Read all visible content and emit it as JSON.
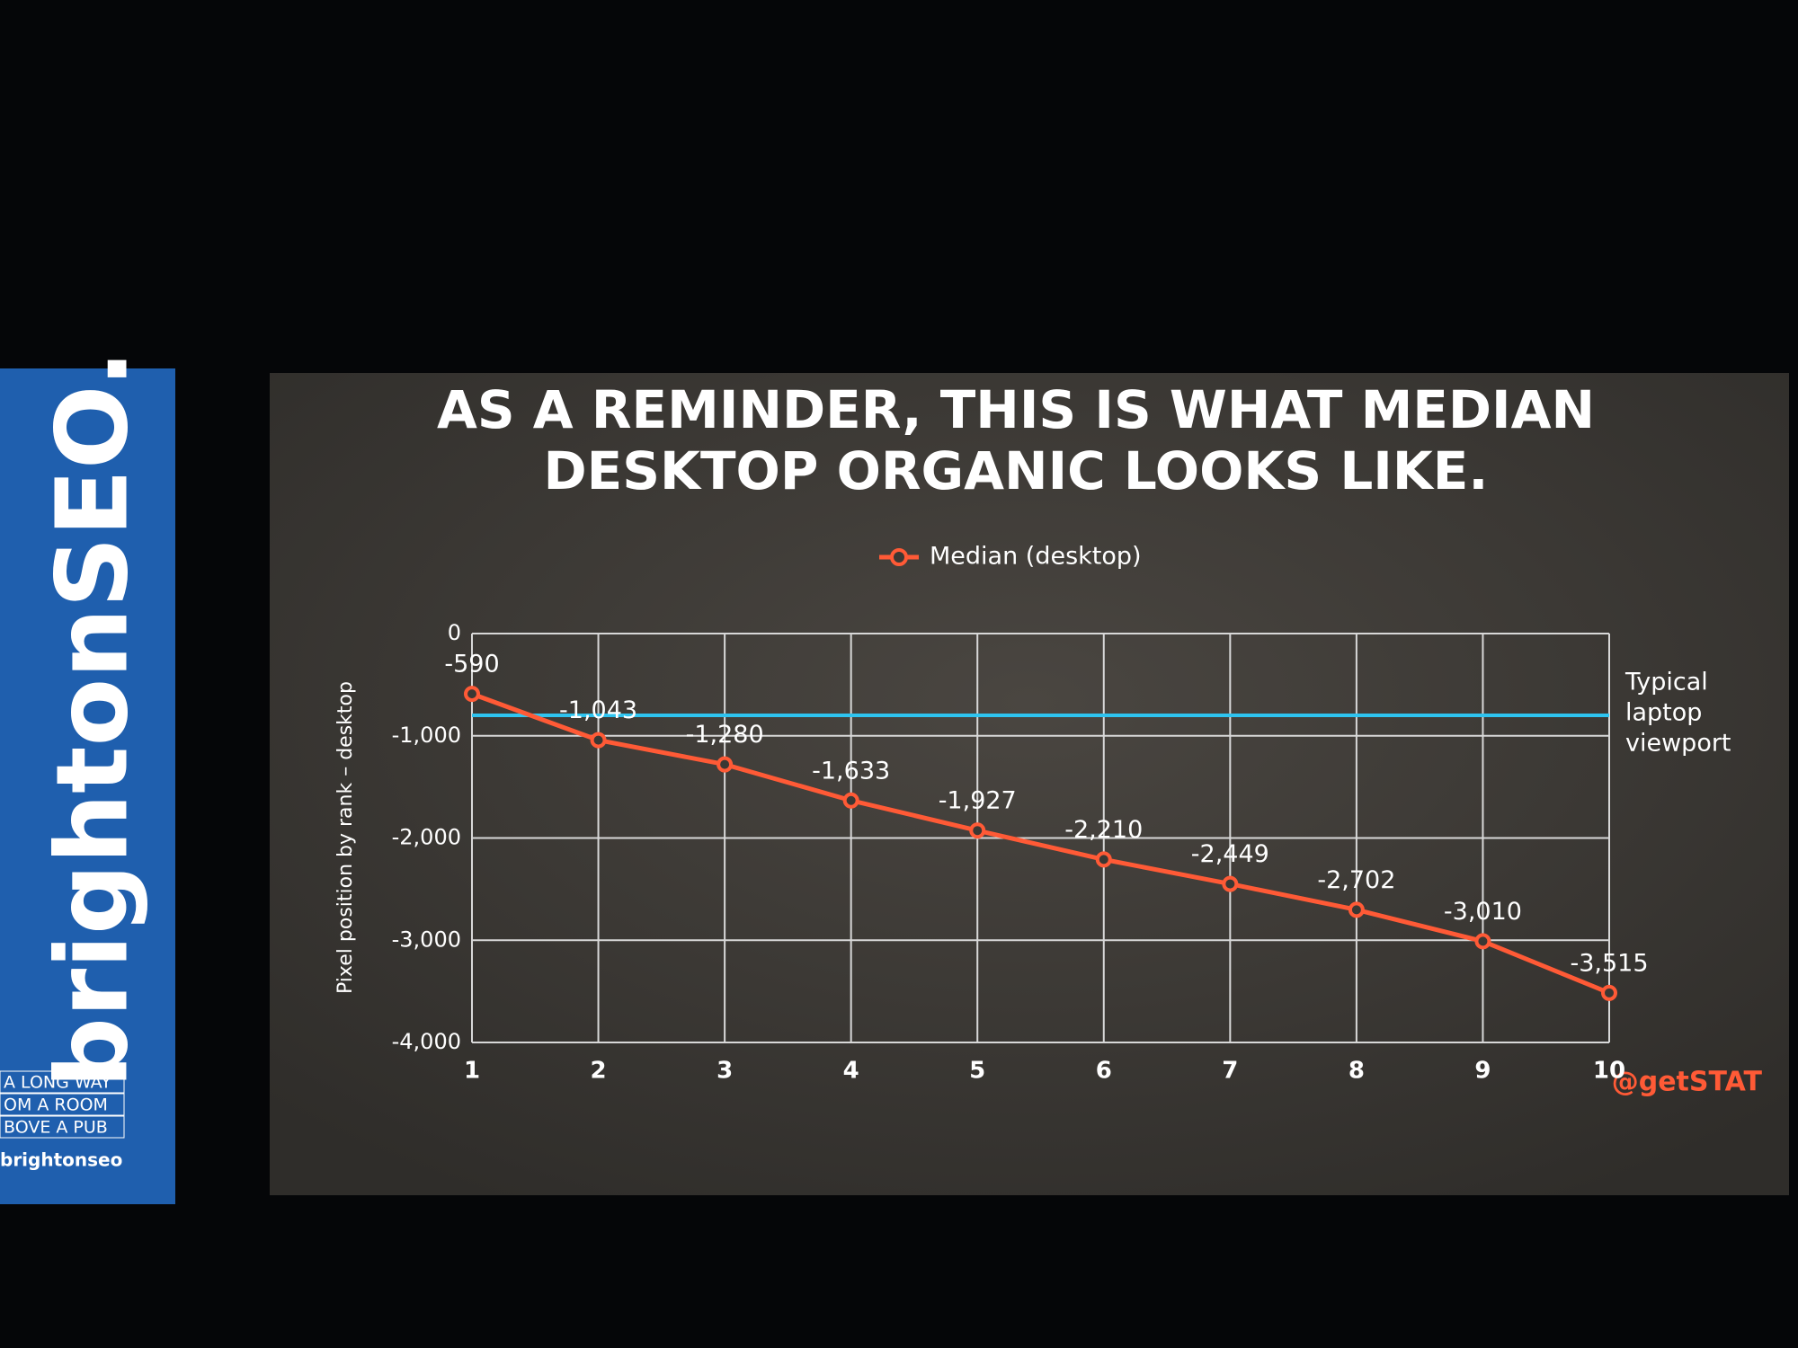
{
  "chart_data": {
    "type": "line",
    "title": "AS A REMINDER, THIS IS WHAT MEDIAN DESKTOP ORGANIC LOOKS LIKE.",
    "y_label": "Pixel position by rank – desktop",
    "x": [
      1,
      2,
      3,
      4,
      5,
      6,
      7,
      8,
      9,
      10
    ],
    "xlim": [
      1,
      10
    ],
    "xticks": [
      1,
      2,
      3,
      4,
      5,
      6,
      7,
      8,
      9,
      10
    ],
    "ylim": [
      -4000,
      0
    ],
    "yticks": [
      {
        "value": -4000,
        "label": "-4,000"
      },
      {
        "value": -3000,
        "label": "-3,000"
      },
      {
        "value": -2000,
        "label": "-2,000"
      },
      {
        "value": -1000,
        "label": "-1,000"
      },
      0
    ],
    "grid": true,
    "legend": "top",
    "series": [
      {
        "name": "Median (desktop)",
        "color": "#ff5a36",
        "values": [
          -590,
          -1043,
          -1280,
          -1633,
          -1927,
          -2210,
          -2449,
          -2702,
          -3010,
          -3515
        ],
        "value_labels": [
          "-590",
          "-1,043",
          "-1,280",
          "-1,633",
          "-1,927",
          "-2,210",
          "-2,449",
          "-2,702",
          "-3,010",
          "-3,515"
        ]
      }
    ],
    "reference_line": {
      "label": [
        "Typical",
        "laptop",
        "viewport"
      ],
      "value": -800,
      "color": "#2ec4f0"
    },
    "credit": "@getSTAT"
  },
  "banner": {
    "title": "brightonSEO.",
    "tagline": [
      "A LONG WAY",
      "OM A ROOM",
      "BOVE A PUB"
    ],
    "handle": "brightonseo"
  }
}
